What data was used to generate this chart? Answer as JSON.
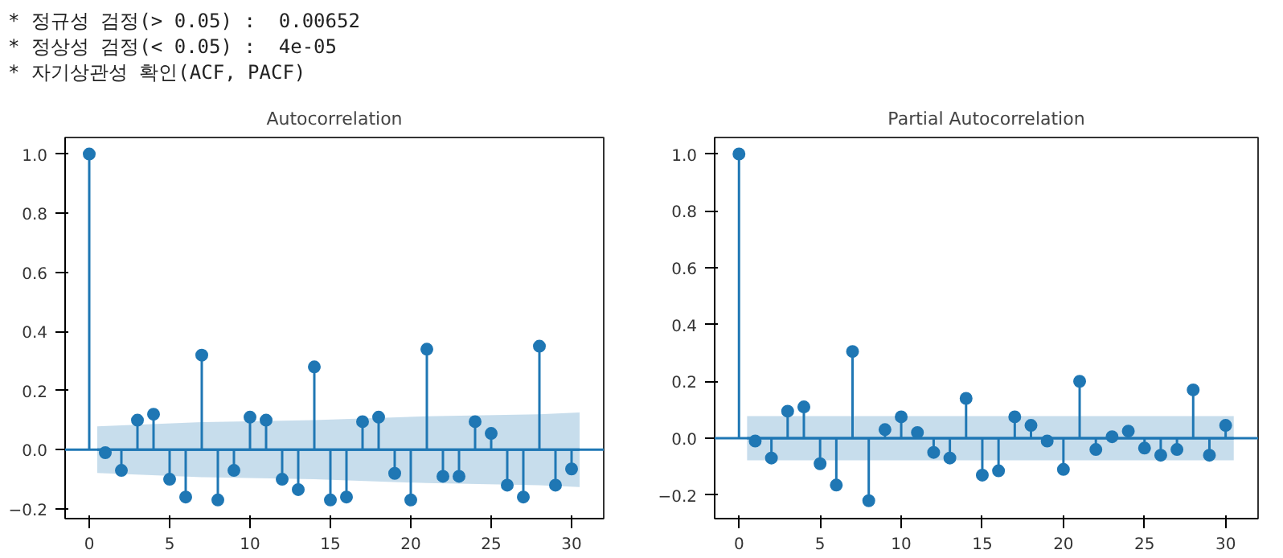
{
  "chart_data": [
    {
      "type": "lollipop",
      "title": "Autocorrelation",
      "annotations": [
        "* 정규성 검정(> 0.05) :  0.00652",
        "* 정상성 검정(< 0.05) :  4e-05",
        "* 자기상관성 확인(ACF, PACF)"
      ],
      "grid": false,
      "ref_lines": [
        {
          "axis": "y",
          "value": 0,
          "color": "#1f77b4"
        }
      ],
      "xlim": [
        -1.5,
        32
      ],
      "xticks": [
        0,
        5,
        10,
        15,
        20,
        25,
        30
      ],
      "ylim": [
        -0.233,
        1.056
      ],
      "yticks": [
        {
          "value": -0.2,
          "label": "−0.2"
        },
        {
          "value": 0,
          "label": "0.0"
        },
        {
          "value": 0.2,
          "label": "0.2"
        },
        {
          "value": 0.4,
          "label": "0.4"
        },
        {
          "value": 0.6,
          "label": "0.6"
        },
        {
          "value": 0.8,
          "label": "0.8"
        },
        {
          "value": 1,
          "label": "1.0"
        }
      ],
      "series": [
        {
          "marker": "circle",
          "color": "#1f77b4",
          "x": [
            0,
            1,
            2,
            3,
            4,
            5,
            6,
            7,
            8,
            9,
            10,
            11,
            12,
            13,
            14,
            15,
            16,
            17,
            18,
            19,
            20,
            21,
            22,
            23,
            24,
            25,
            26,
            27,
            28,
            29,
            30
          ],
          "values": [
            1.0,
            -0.01,
            -0.07,
            0.1,
            0.12,
            -0.1,
            -0.16,
            0.32,
            -0.17,
            -0.07,
            0.11,
            0.1,
            -0.1,
            -0.135,
            0.28,
            -0.17,
            -0.16,
            0.095,
            0.11,
            -0.08,
            -0.17,
            0.34,
            -0.09,
            -0.09,
            0.095,
            0.055,
            -0.12,
            -0.16,
            0.35,
            -0.12,
            -0.065
          ]
        },
        {
          "type": "line",
          "color": "#1f77b4",
          "x": [
            0.5,
            7,
            14,
            21,
            28,
            30.5
          ],
          "values": [
            0,
            0,
            0,
            0,
            0,
            0
          ],
          "lower": [
            -0.079,
            -0.093,
            -0.1,
            -0.113,
            -0.12,
            -0.126
          ],
          "upper": [
            0.079,
            0.093,
            0.1,
            0.113,
            0.12,
            0.126
          ]
        }
      ]
    },
    {
      "type": "lollipop",
      "title": "Partial Autocorrelation",
      "grid": false,
      "ref_lines": [
        {
          "axis": "y",
          "value": 0,
          "color": "#1f77b4"
        }
      ],
      "xlim": [
        -1.5,
        32
      ],
      "xticks": [
        0,
        5,
        10,
        15,
        20,
        25,
        30
      ],
      "ylim": [
        -0.283,
        1.058
      ],
      "yticks": [
        {
          "value": -0.2,
          "label": "−0.2"
        },
        {
          "value": 0,
          "label": "0.0"
        },
        {
          "value": 0.2,
          "label": "0.2"
        },
        {
          "value": 0.4,
          "label": "0.4"
        },
        {
          "value": 0.6,
          "label": "0.6"
        },
        {
          "value": 0.8,
          "label": "0.8"
        },
        {
          "value": 1,
          "label": "1.0"
        }
      ],
      "series": [
        {
          "marker": "circle",
          "color": "#1f77b4",
          "x": [
            0,
            1,
            2,
            3,
            4,
            5,
            6,
            7,
            8,
            9,
            10,
            11,
            12,
            13,
            14,
            15,
            16,
            17,
            18,
            19,
            20,
            21,
            22,
            23,
            24,
            25,
            26,
            27,
            28,
            29,
            30
          ],
          "values": [
            1.0,
            -0.01,
            -0.07,
            0.095,
            0.11,
            -0.09,
            -0.165,
            0.305,
            -0.22,
            0.03,
            0.075,
            0.02,
            -0.05,
            -0.07,
            0.14,
            -0.13,
            -0.115,
            0.075,
            0.045,
            -0.01,
            -0.11,
            0.2,
            -0.04,
            0.005,
            0.025,
            -0.035,
            -0.06,
            -0.04,
            0.17,
            -0.06,
            0.045
          ]
        },
        {
          "type": "line",
          "color": "#1f77b4",
          "x": [
            0.5,
            30.5
          ],
          "values": [
            0,
            0
          ],
          "lower": [
            -0.078,
            -0.078
          ],
          "upper": [
            0.078,
            0.078
          ]
        }
      ]
    }
  ]
}
